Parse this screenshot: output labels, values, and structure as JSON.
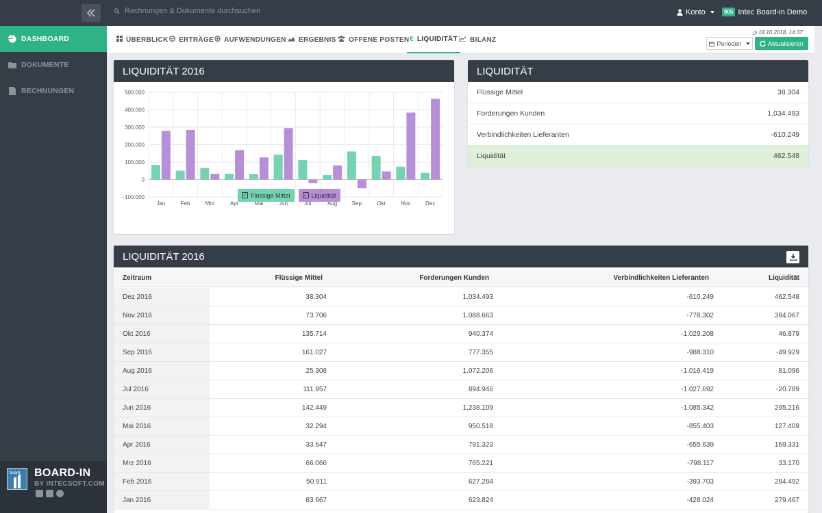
{
  "topbar": {
    "search_placeholder": "Rechnungen & Dokumente durchsuchen",
    "account_label": "Konto",
    "org_badge": "905",
    "org_name": "Intec Board-in Demo"
  },
  "sidebar": {
    "items": [
      {
        "label": "DASHBOARD",
        "icon": "pie-chart-icon",
        "active": true
      },
      {
        "label": "DOKUMENTE",
        "icon": "folder-icon",
        "active": false
      },
      {
        "label": "RECHNUNGEN",
        "icon": "file-icon",
        "active": false
      }
    ],
    "brand": {
      "name": "BOARD-IN",
      "sub": "BY INTECSOFT.COM",
      "logo_text": "board"
    }
  },
  "tabs": [
    {
      "label": "ÜBERBLICK",
      "icon": "grid-icon"
    },
    {
      "label": "ERTRÄGE",
      "icon": "minus-circle-icon"
    },
    {
      "label": "AUFWENDUNGEN",
      "icon": "plus-circle-icon"
    },
    {
      "label": "ERGEBNIS",
      "icon": "area-chart-icon"
    },
    {
      "label": "OFFENE POSTEN",
      "icon": "users-icon"
    },
    {
      "label": "LIQUIDITÄT",
      "icon": "euro-icon",
      "active": true
    },
    {
      "label": "BILANZ",
      "icon": "line-chart-icon"
    }
  ],
  "toolbar": {
    "timestamp": "18.10.2018, 14:37",
    "periods_label": "Perioden",
    "refresh_label": "Aktualisieren"
  },
  "colors": {
    "accent": "#2fb287",
    "dark": "#353d47",
    "series1": "#74d3b2",
    "series2": "#b78fd8",
    "highlight": "#dff0d8"
  },
  "chart_panel": {
    "title": "LIQUIDITÄT 2016"
  },
  "chart_data": {
    "type": "bar",
    "title": "LIQUIDITÄT 2016",
    "categories": [
      "Jan",
      "Feb",
      "Mrz",
      "Apr",
      "Mai",
      "Jun",
      "Jul",
      "Aug",
      "Sep",
      "Okt",
      "Nov",
      "Dez"
    ],
    "series": [
      {
        "name": "Flüssige Mittel",
        "values": [
          83667,
          50911,
          66066,
          33647,
          32294,
          142449,
          111957,
          25308,
          161027,
          135714,
          73706,
          38304
        ]
      },
      {
        "name": "Liquidität",
        "values": [
          279467,
          284492,
          33170,
          169331,
          127409,
          295216,
          -20789,
          81096,
          -49929,
          46879,
          384067,
          462548
        ]
      }
    ],
    "yticks": [
      "500.000",
      "400.000",
      "300.000",
      "200.000",
      "100.000",
      "0",
      "-100.000"
    ],
    "ylim": [
      -100000,
      500000
    ],
    "grid": true,
    "legend": "bottom"
  },
  "liq_panel": {
    "title": "LIQUIDITÄT",
    "rows": [
      {
        "label": "Flüssige Mittel",
        "value": "38.304"
      },
      {
        "label": "Forderungen Kunden",
        "value": "1.034.493"
      },
      {
        "label": "Verbindlichkeiten Lieferanten",
        "value": "-610.249"
      },
      {
        "label": "Liquidität",
        "value": "462.548"
      }
    ]
  },
  "table_panel": {
    "title": "LIQUIDITÄT 2016",
    "columns": [
      "Zeitraum",
      "Flüssige Mittel",
      "Forderungen Kunden",
      "Verbindlichkeiten Lieferanten",
      "Liquidität"
    ],
    "rows": [
      [
        "Dez 2016",
        "38.304",
        "1.034.493",
        "-610.249",
        "462.548"
      ],
      [
        "Nov 2016",
        "73.706",
        "1.088.663",
        "-778.302",
        "384.067"
      ],
      [
        "Okt 2016",
        "135.714",
        "940.374",
        "-1.029.208",
        "46.879"
      ],
      [
        "Sep 2016",
        "161.027",
        "777.355",
        "-988.310",
        "-49.929"
      ],
      [
        "Aug 2016",
        "25.308",
        "1.072.206",
        "-1.016.419",
        "81.096"
      ],
      [
        "Jul 2016",
        "111.957",
        "894.946",
        "-1.027.692",
        "-20.789"
      ],
      [
        "Jun 2016",
        "142.449",
        "1.238.109",
        "-1.085.342",
        "295.216"
      ],
      [
        "Mai 2016",
        "32.294",
        "950.518",
        "-855.403",
        "127.409"
      ],
      [
        "Apr 2016",
        "33.647",
        "791.323",
        "-655.639",
        "169.331"
      ],
      [
        "Mrz 2016",
        "66.066",
        "765.221",
        "-798.117",
        "33.170"
      ],
      [
        "Feb 2016",
        "50.911",
        "627.284",
        "-393.703",
        "284.492"
      ],
      [
        "Jan 2016",
        "83.667",
        "623.824",
        "-428.024",
        "279.467"
      ]
    ]
  }
}
